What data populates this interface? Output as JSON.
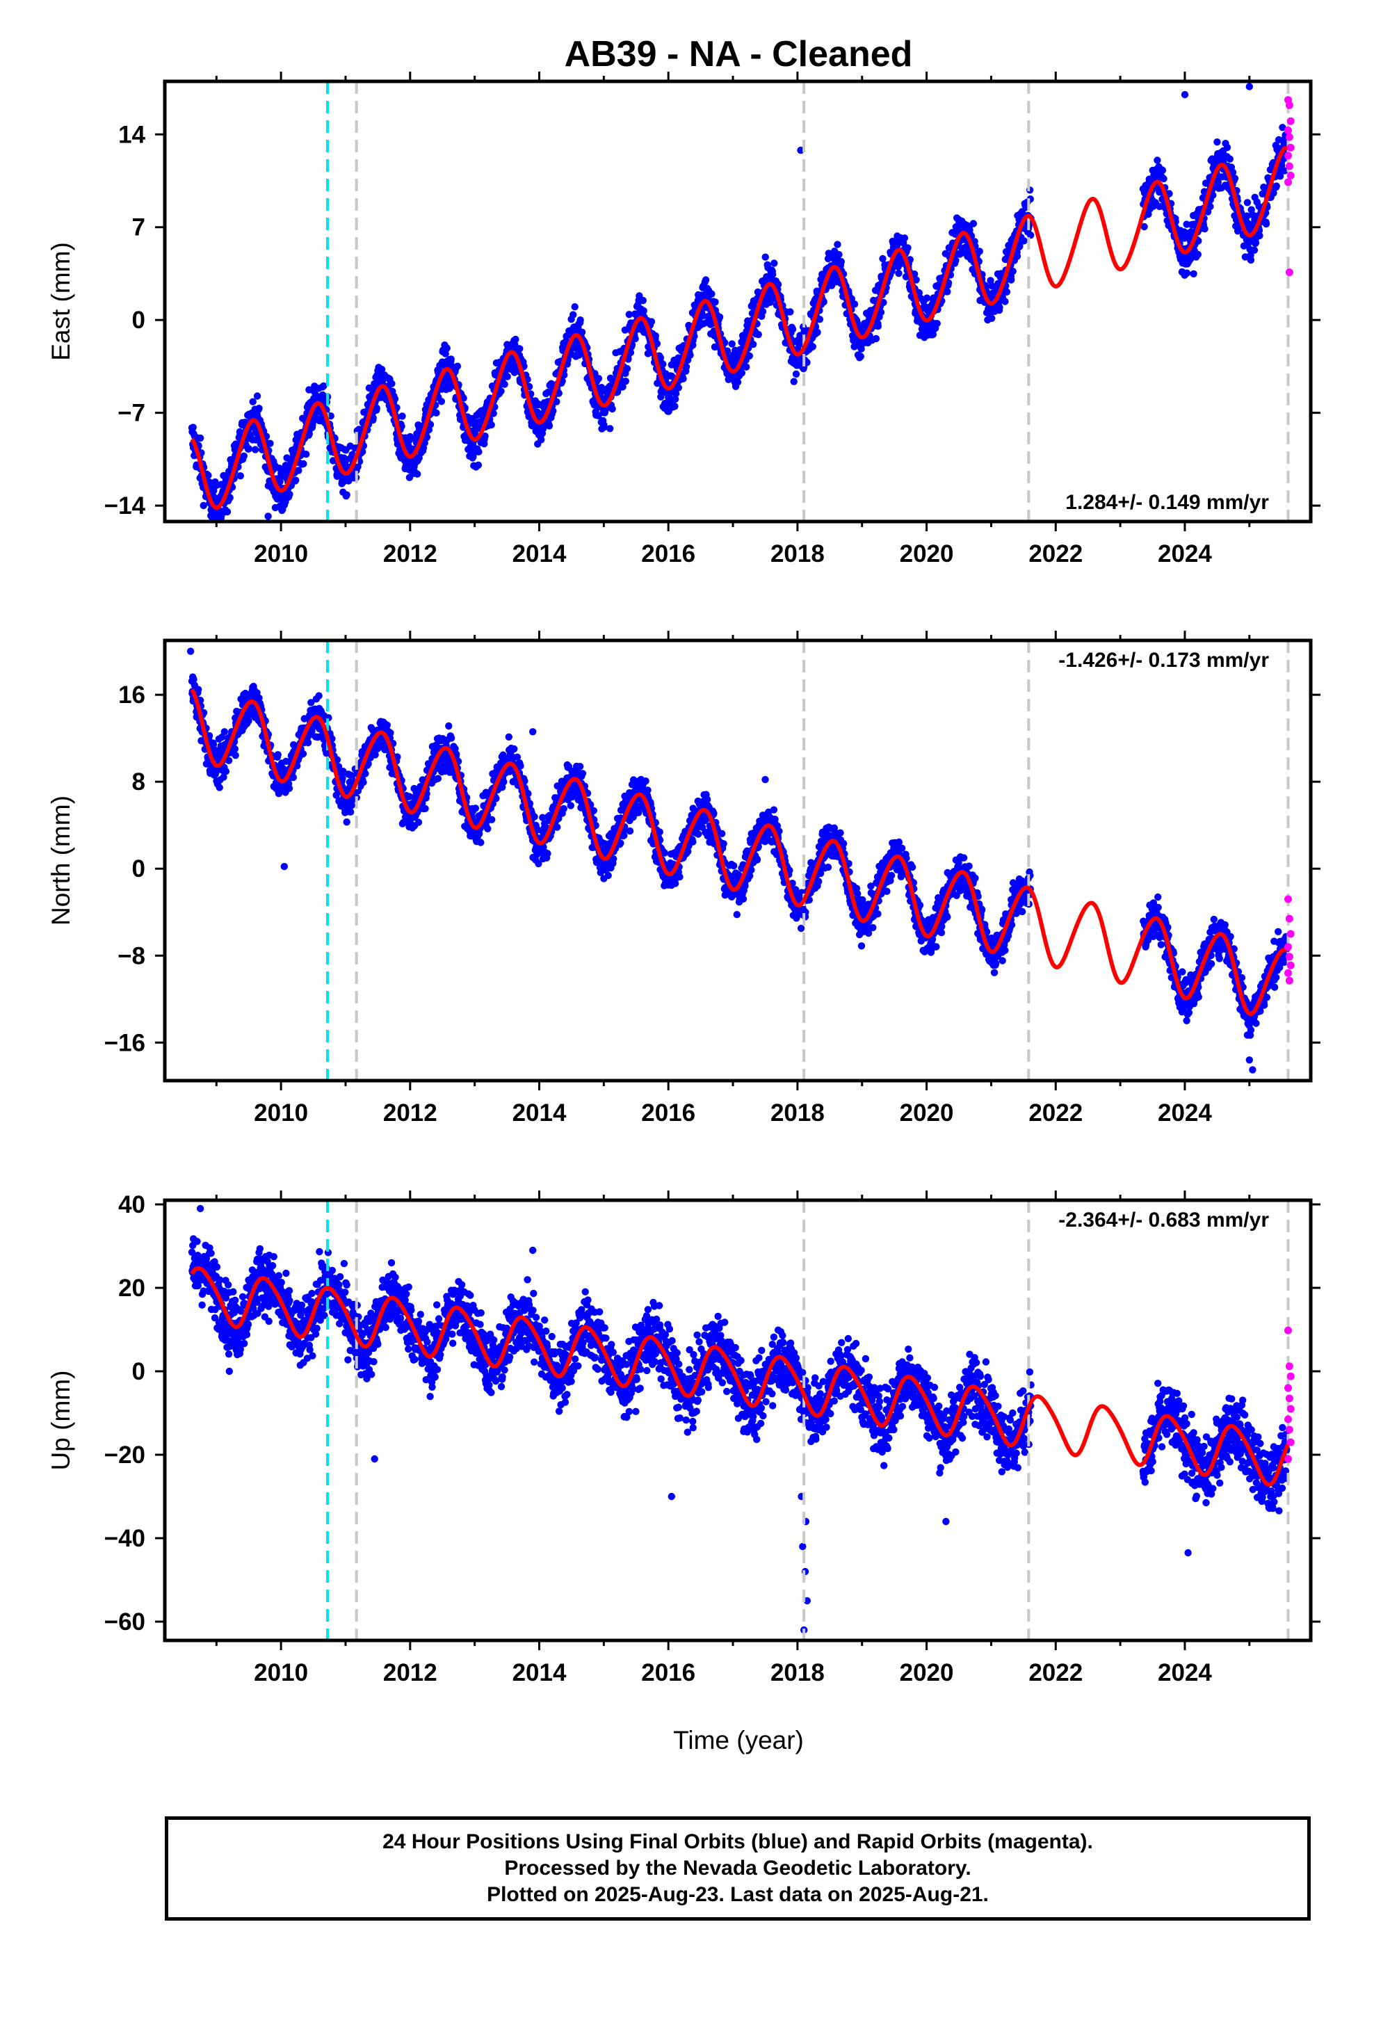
{
  "title": "AB39  - NA - Cleaned",
  "xlabel": "Time (year)",
  "footer": {
    "line1": "24 Hour Positions Using Final Orbits (blue) and Rapid Orbits (magenta).",
    "line2": "Processed by the Nevada Geodetic Laboratory.",
    "line3": "Plotted on 2025-Aug-23. Last data on 2025-Aug-21."
  },
  "colors": {
    "final_orbits": "#0000ff",
    "rapid_orbits": "#ff00ff",
    "model_fit": "#ff0000",
    "event_cyan": "#00e5ee",
    "event_gray": "#c8c8c8"
  },
  "chart_data": [
    {
      "type": "scatter",
      "component": "east",
      "ylabel": "East (mm)",
      "rate_text": "1.284+/- 0.149 mm/yr",
      "rate_position": "bottom-right",
      "xlim": [
        2008.2,
        2025.95
      ],
      "ylim": [
        -15.2,
        18.0
      ],
      "xticks": [
        2010,
        2012,
        2014,
        2016,
        2018,
        2020,
        2022,
        2024
      ],
      "yticks": [
        -14,
        -7,
        0,
        7,
        14
      ],
      "show_xtick_labels": true,
      "cyan_lines": [
        2010.72
      ],
      "gray_lines": [
        2011.17,
        2018.1,
        2021.58,
        2025.6
      ],
      "model": {
        "a0": -11.8,
        "rate": 1.284,
        "t0": 2008.6,
        "amp1": 2.9,
        "phase1": 1.94,
        "amp2": 0.25,
        "phase2": 1.0
      },
      "noise": 1.2,
      "outliers": [
        [
          2018.05,
          12.8
        ],
        [
          2025.0,
          17.6
        ],
        [
          2024.0,
          17.0
        ],
        [
          2009.8,
          -14.8
        ],
        [
          2021.6,
          9.8
        ]
      ],
      "gap": [
        2021.62,
        2023.35
      ],
      "rapid": {
        "x_start": 2025.6,
        "x_end": 2025.64,
        "values": [
          16.6,
          16.2,
          15.0,
          14.3,
          13.8,
          13.0,
          12.4,
          11.6,
          10.9,
          10.4,
          3.6
        ]
      }
    },
    {
      "type": "scatter",
      "component": "north",
      "ylabel": "North (mm)",
      "rate_text": "-1.426+/- 0.173 mm/yr",
      "rate_position": "top-right",
      "xlim": [
        2008.2,
        2025.95
      ],
      "ylim": [
        -19.5,
        21.0
      ],
      "xticks": [
        2010,
        2012,
        2014,
        2016,
        2018,
        2020,
        2022,
        2024
      ],
      "yticks": [
        -16,
        -8,
        0,
        8,
        16
      ],
      "show_xtick_labels": true,
      "cyan_lines": [
        2010.72
      ],
      "gray_lines": [
        2011.17,
        2018.1,
        2021.58,
        2025.6
      ],
      "model": {
        "a0": 13.5,
        "rate": -1.426,
        "t0": 2008.6,
        "amp1": 3.3,
        "phase1": 2.0,
        "amp2": 0.3,
        "phase2": 0.5
      },
      "noise": 1.3,
      "outliers": [
        [
          2008.6,
          20.0
        ],
        [
          2010.05,
          0.2
        ],
        [
          2013.9,
          12.6
        ],
        [
          2017.5,
          8.2
        ],
        [
          2025.05,
          -18.5
        ],
        [
          2025.0,
          -17.6
        ]
      ],
      "gap": [
        2021.62,
        2023.35
      ],
      "rapid": {
        "x_start": 2025.6,
        "x_end": 2025.64,
        "values": [
          -2.8,
          -4.6,
          -6.0,
          -7.2,
          -8.1,
          -8.9,
          -9.6,
          -10.3
        ]
      }
    },
    {
      "type": "scatter",
      "component": "up",
      "ylabel": "Up (mm)",
      "rate_text": "-2.364+/- 0.683 mm/yr",
      "rate_position": "top-right",
      "xlim": [
        2008.2,
        2025.95
      ],
      "ylim": [
        -64.5,
        41.0
      ],
      "xticks": [
        2010,
        2012,
        2014,
        2016,
        2018,
        2020,
        2022,
        2024
      ],
      "yticks": [
        -60,
        -40,
        -20,
        0,
        20,
        40
      ],
      "show_xtick_labels": true,
      "cyan_lines": [
        2010.72
      ],
      "gray_lines": [
        2011.17,
        2018.1,
        2021.58,
        2025.6
      ],
      "model": {
        "a0": 19.0,
        "rate": -2.364,
        "t0": 2008.6,
        "amp1": 6.2,
        "phase1": 0.5,
        "amp2": 0.8,
        "phase2": 1.5
      },
      "noise": 5.5,
      "outliers": [
        [
          2008.75,
          39.0
        ],
        [
          2009.2,
          0.0
        ],
        [
          2016.05,
          -30.0
        ],
        [
          2018.1,
          -62.0
        ],
        [
          2018.15,
          -55.0
        ],
        [
          2018.12,
          -48.0
        ],
        [
          2018.08,
          -42.0
        ],
        [
          2018.13,
          -36.0
        ],
        [
          2018.06,
          -30.0
        ],
        [
          2024.05,
          -43.5
        ],
        [
          2020.3,
          -36.0
        ],
        [
          2013.9,
          29.0
        ],
        [
          2011.45,
          -21.0
        ]
      ],
      "gap": [
        2021.62,
        2023.35
      ],
      "rapid": {
        "x_start": 2025.6,
        "x_end": 2025.64,
        "values": [
          9.8,
          1.2,
          -1.2,
          -4.0,
          -6.5,
          -9.0,
          -11.5,
          -14.0,
          -17.0,
          -21.0
        ]
      }
    }
  ]
}
